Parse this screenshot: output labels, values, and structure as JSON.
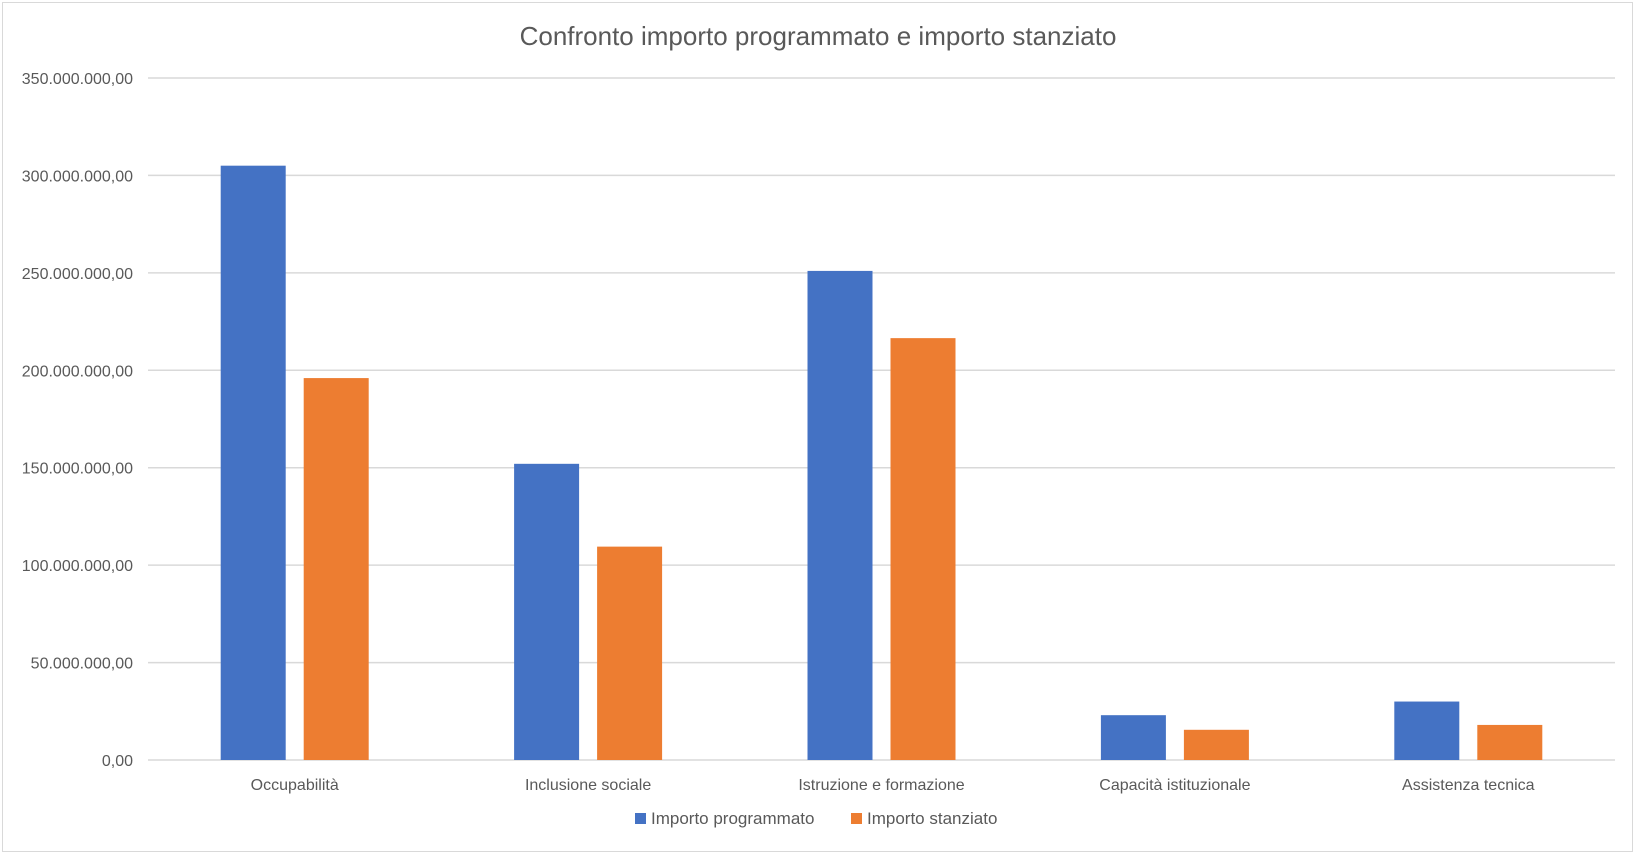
{
  "chart_data": {
    "type": "bar",
    "title": "Confronto importo programmato e importo stanziato",
    "categories": [
      "Occupabilità",
      "Inclusione sociale",
      "Istruzione e formazione",
      "Capacità istituzionale",
      "Assistenza tecnica"
    ],
    "series": [
      {
        "name": "Importo programmato",
        "color": "#4472C4",
        "values": [
          305000000,
          152000000,
          251000000,
          23000000,
          30000000
        ]
      },
      {
        "name": "Importo stanziato",
        "color": "#ED7D31",
        "values": [
          196000000,
          109500000,
          216500000,
          15500000,
          18000000
        ]
      }
    ],
    "ylim": [
      0,
      350000000
    ],
    "yticks": [
      "0,00",
      "50.000.000,00",
      "100.000.000,00",
      "150.000.000,00",
      "200.000.000,00",
      "250.000.000,00",
      "300.000.000,00",
      "350.000.000,00"
    ],
    "grid": true,
    "legend_position": "bottom"
  }
}
